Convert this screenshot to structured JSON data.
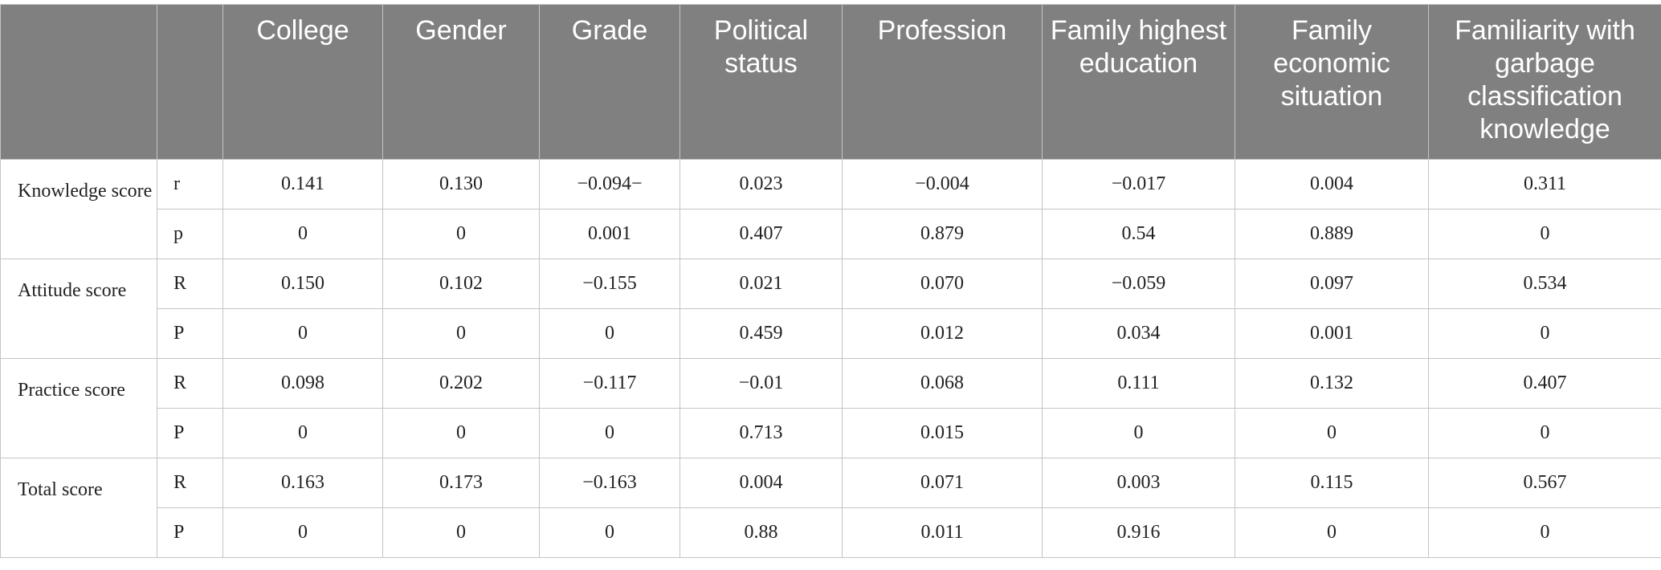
{
  "table": {
    "headers": [
      "",
      "",
      "College",
      "Gender",
      "Grade",
      "Political status",
      "Profession",
      "Family highest education",
      "Family economic situation",
      "Familiarity with garbage classification knowledge"
    ],
    "groups": [
      {
        "label": "Knowledge score",
        "rows": [
          {
            "stat": "r",
            "values": [
              "0.141",
              "0.130",
              "−0.094−",
              "0.023",
              "−0.004",
              "−0.017",
              "0.004",
              "0.311"
            ]
          },
          {
            "stat": "p",
            "values": [
              "0",
              "0",
              "0.001",
              "0.407",
              "0.879",
              "0.54",
              "0.889",
              "0"
            ]
          }
        ]
      },
      {
        "label": "Attitude score",
        "rows": [
          {
            "stat": "R",
            "values": [
              "0.150",
              "0.102",
              "−0.155",
              "0.021",
              "0.070",
              "−0.059",
              "0.097",
              "0.534"
            ]
          },
          {
            "stat": "P",
            "values": [
              "0",
              "0",
              "0",
              "0.459",
              "0.012",
              "0.034",
              "0.001",
              "0"
            ]
          }
        ]
      },
      {
        "label": "Practice score",
        "rows": [
          {
            "stat": "R",
            "values": [
              "0.098",
              "0.202",
              "−0.117",
              "−0.01",
              "0.068",
              "0.111",
              "0.132",
              "0.407"
            ]
          },
          {
            "stat": "P",
            "values": [
              "0",
              "0",
              "0",
              "0.713",
              "0.015",
              "0",
              "0",
              "0"
            ]
          }
        ]
      },
      {
        "label": "Total score",
        "rows": [
          {
            "stat": "R",
            "values": [
              "0.163",
              "0.173",
              "−0.163",
              "0.004",
              "0.071",
              "0.003",
              "0.115",
              "0.567"
            ]
          },
          {
            "stat": "P",
            "values": [
              "0",
              "0",
              "0",
              "0.88",
              "0.011",
              "0.916",
              "0",
              "0"
            ]
          }
        ]
      }
    ]
  }
}
